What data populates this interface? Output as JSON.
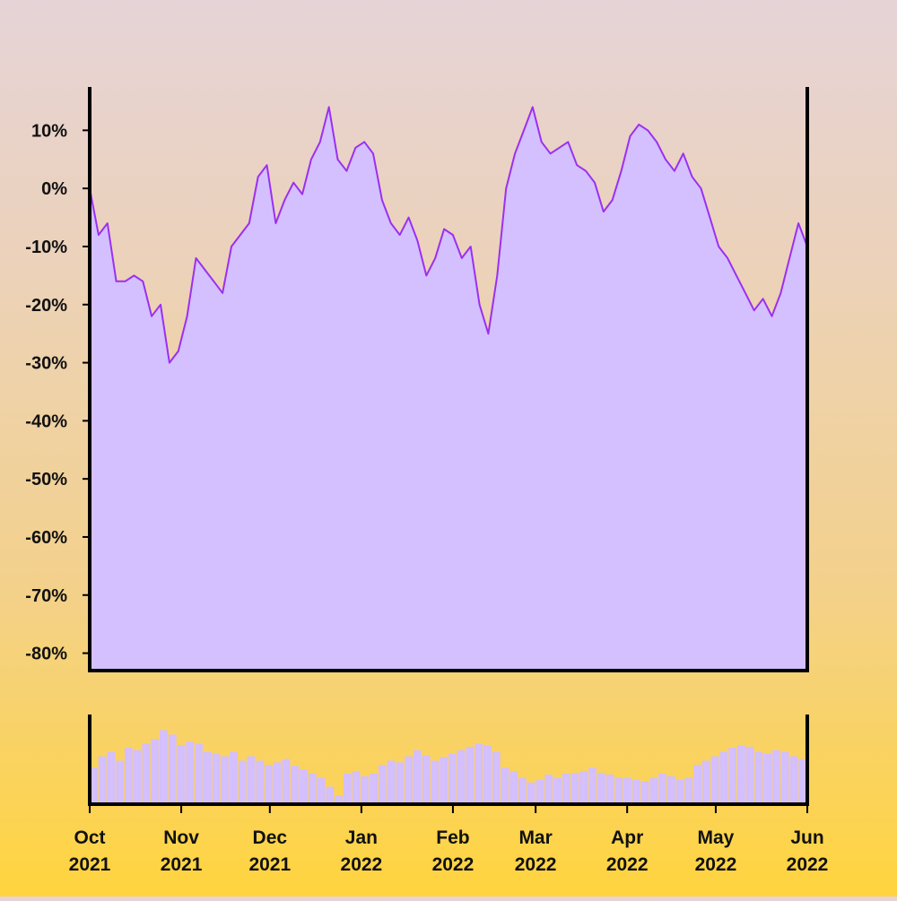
{
  "chart_data": {
    "type": "area",
    "colors": {
      "line": "#9b30f0",
      "fill": "#d4bfff",
      "axis": "#000000",
      "volume": "#d4bfff"
    },
    "main": {
      "ylim": [
        -0.83,
        0.17
      ],
      "y_ticks": [
        0.1,
        0.0,
        -0.1,
        -0.2,
        -0.3,
        -0.4,
        -0.5,
        -0.6,
        -0.7,
        -0.8
      ],
      "y_tick_labels": [
        "10%",
        "0%",
        "-10%",
        "-20%",
        "-30%",
        "-40%",
        "-50%",
        "-60%",
        "-70%",
        "-80%"
      ],
      "grid": false,
      "x": [
        "2021-10-01",
        "2021-10-04",
        "2021-10-07",
        "2021-10-10",
        "2021-10-13",
        "2021-10-16",
        "2021-10-19",
        "2021-10-22",
        "2021-10-25",
        "2021-10-28",
        "2021-10-31",
        "2021-11-03",
        "2021-11-06",
        "2021-11-09",
        "2021-11-12",
        "2021-11-15",
        "2021-11-18",
        "2021-11-21",
        "2021-11-24",
        "2021-11-27",
        "2021-11-30",
        "2021-12-03",
        "2021-12-06",
        "2021-12-09",
        "2021-12-12",
        "2021-12-15",
        "2021-12-18",
        "2021-12-21",
        "2021-12-24",
        "2021-12-27",
        "2021-12-30",
        "2022-01-02",
        "2022-01-05",
        "2022-01-08",
        "2022-01-11",
        "2022-01-14",
        "2022-01-17",
        "2022-01-20",
        "2022-01-23",
        "2022-01-26",
        "2022-01-29",
        "2022-02-01",
        "2022-02-04",
        "2022-02-07",
        "2022-02-10",
        "2022-02-13",
        "2022-02-16",
        "2022-02-19",
        "2022-02-22",
        "2022-02-25",
        "2022-02-28",
        "2022-03-03",
        "2022-03-06",
        "2022-03-09",
        "2022-03-12",
        "2022-03-15",
        "2022-03-18",
        "2022-03-21",
        "2022-03-24",
        "2022-03-27",
        "2022-03-30",
        "2022-04-02",
        "2022-04-05",
        "2022-04-08",
        "2022-04-11",
        "2022-04-14",
        "2022-04-17",
        "2022-04-20",
        "2022-04-23",
        "2022-04-26",
        "2022-04-29",
        "2022-05-02",
        "2022-05-05",
        "2022-05-08",
        "2022-05-11",
        "2022-05-14",
        "2022-05-17",
        "2022-05-20",
        "2022-05-23",
        "2022-05-26",
        "2022-05-29",
        "2022-06-01"
      ],
      "y": [
        0.0,
        -0.08,
        -0.06,
        -0.16,
        -0.16,
        -0.15,
        -0.16,
        -0.22,
        -0.2,
        -0.3,
        -0.28,
        -0.22,
        -0.12,
        -0.14,
        -0.16,
        -0.18,
        -0.1,
        -0.08,
        -0.06,
        0.02,
        0.04,
        -0.06,
        -0.02,
        0.01,
        -0.01,
        0.05,
        0.08,
        0.14,
        0.05,
        0.03,
        0.07,
        0.08,
        0.06,
        -0.02,
        -0.06,
        -0.08,
        -0.05,
        -0.09,
        -0.15,
        -0.12,
        -0.07,
        -0.08,
        -0.12,
        -0.1,
        -0.2,
        -0.25,
        -0.15,
        0.0,
        0.06,
        0.1,
        0.14,
        0.08,
        0.06,
        0.07,
        0.08,
        0.04,
        0.03,
        0.01,
        -0.04,
        -0.02,
        0.03,
        0.09,
        0.11,
        0.1,
        0.08,
        0.05,
        0.03,
        0.06,
        0.02,
        0.0,
        -0.05,
        -0.1,
        -0.12,
        -0.15,
        -0.18,
        -0.21,
        -0.19,
        -0.22,
        -0.18,
        -0.12,
        -0.06,
        -0.1
      ]
    },
    "volume": {
      "values": [
        0.42,
        0.55,
        0.6,
        0.5,
        0.65,
        0.62,
        0.7,
        0.75,
        0.85,
        0.8,
        0.68,
        0.72,
        0.7,
        0.6,
        0.58,
        0.55,
        0.6,
        0.5,
        0.55,
        0.5,
        0.45,
        0.48,
        0.52,
        0.44,
        0.4,
        0.35,
        0.3,
        0.2,
        0.1,
        0.35,
        0.38,
        0.32,
        0.35,
        0.45,
        0.5,
        0.48,
        0.55,
        0.62,
        0.56,
        0.5,
        0.54,
        0.58,
        0.62,
        0.66,
        0.7,
        0.68,
        0.6,
        0.42,
        0.38,
        0.3,
        0.25,
        0.28,
        0.34,
        0.3,
        0.35,
        0.36,
        0.38,
        0.42,
        0.36,
        0.34,
        0.3,
        0.3,
        0.28,
        0.26,
        0.3,
        0.35,
        0.32,
        0.28,
        0.3,
        0.45,
        0.5,
        0.55,
        0.6,
        0.65,
        0.68,
        0.66,
        0.6,
        0.58,
        0.62,
        0.6,
        0.55,
        0.52
      ]
    },
    "x_ticks": [
      {
        "date": "2021-10-01",
        "line1": "Oct",
        "line2": "2021"
      },
      {
        "date": "2021-11-01",
        "line1": "Nov",
        "line2": "2021"
      },
      {
        "date": "2021-12-01",
        "line1": "Dec",
        "line2": "2021"
      },
      {
        "date": "2022-01-01",
        "line1": "Jan",
        "line2": "2022"
      },
      {
        "date": "2022-02-01",
        "line1": "Feb",
        "line2": "2022"
      },
      {
        "date": "2022-03-01",
        "line1": "Mar",
        "line2": "2022"
      },
      {
        "date": "2022-04-01",
        "line1": "Apr",
        "line2": "2022"
      },
      {
        "date": "2022-05-01",
        "line1": "May",
        "line2": "2022"
      },
      {
        "date": "2022-06-01",
        "line1": "Jun",
        "line2": "2022"
      }
    ]
  }
}
